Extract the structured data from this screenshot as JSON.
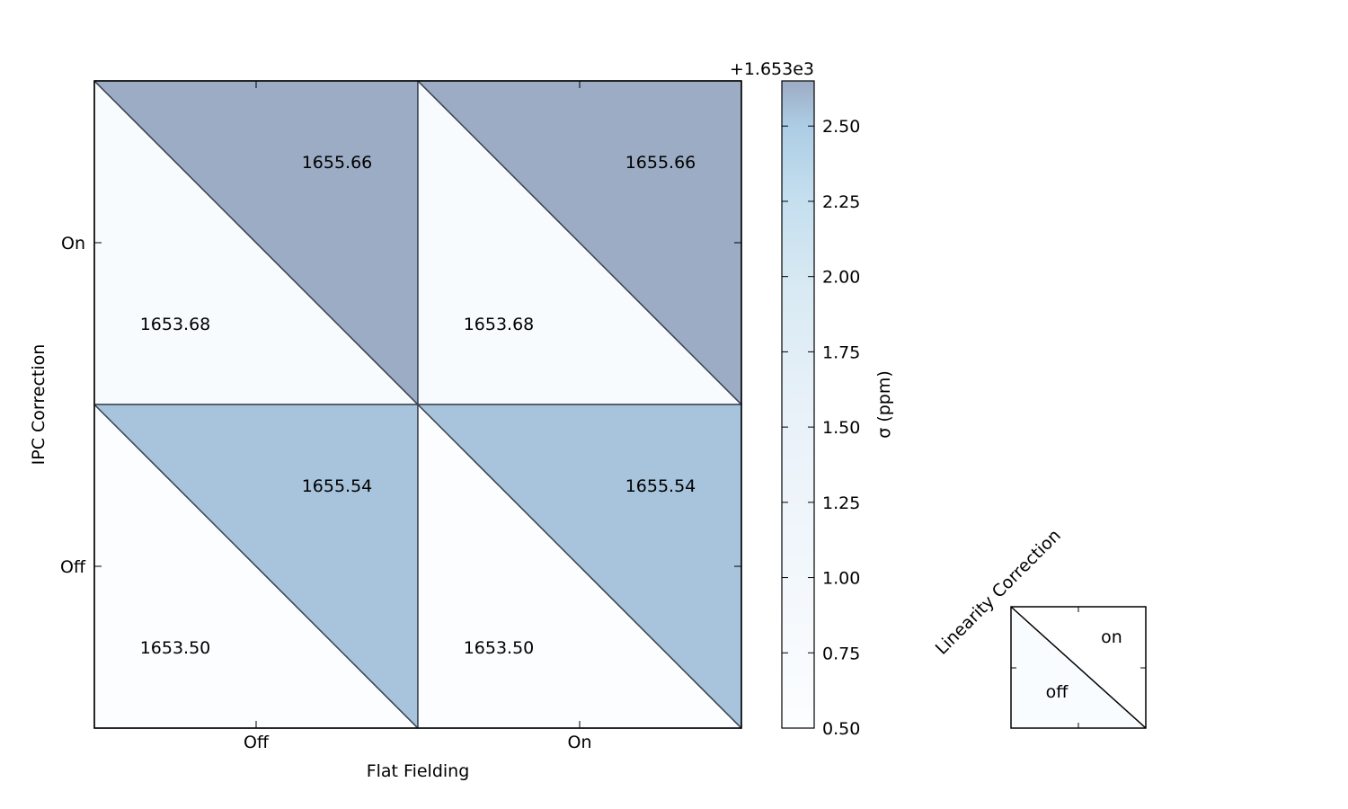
{
  "chart_data": {
    "type": "heatmap",
    "title": "",
    "xlabel": "Flat Fielding",
    "ylabel": "IPC Correction",
    "x_categories": [
      "Off",
      "On"
    ],
    "y_categories": [
      "Off",
      "On"
    ],
    "cells": [
      {
        "flat_fielding": "Off",
        "ipc": "On",
        "linearity_off": "1653.68",
        "linearity_on": "1655.66"
      },
      {
        "flat_fielding": "On",
        "ipc": "On",
        "linearity_off": "1653.68",
        "linearity_on": "1655.66"
      },
      {
        "flat_fielding": "Off",
        "ipc": "Off",
        "linearity_off": "1653.50",
        "linearity_on": "1655.54"
      },
      {
        "flat_fielding": "On",
        "ipc": "Off",
        "linearity_off": "1653.50",
        "linearity_on": "1655.54"
      }
    ],
    "colorbar": {
      "label": "σ (ppm)",
      "offset_label": "+1.653e3",
      "offset": 1653,
      "range": [
        0.5,
        2.65
      ],
      "ticks": [
        "0.50",
        "0.75",
        "1.00",
        "1.25",
        "1.50",
        "1.75",
        "2.00",
        "2.25",
        "2.50"
      ],
      "colormap": "Blues",
      "alpha": 0.4
    },
    "legend": {
      "title": "Linearity Correction",
      "upper_label": "on",
      "lower_label": "off"
    }
  }
}
